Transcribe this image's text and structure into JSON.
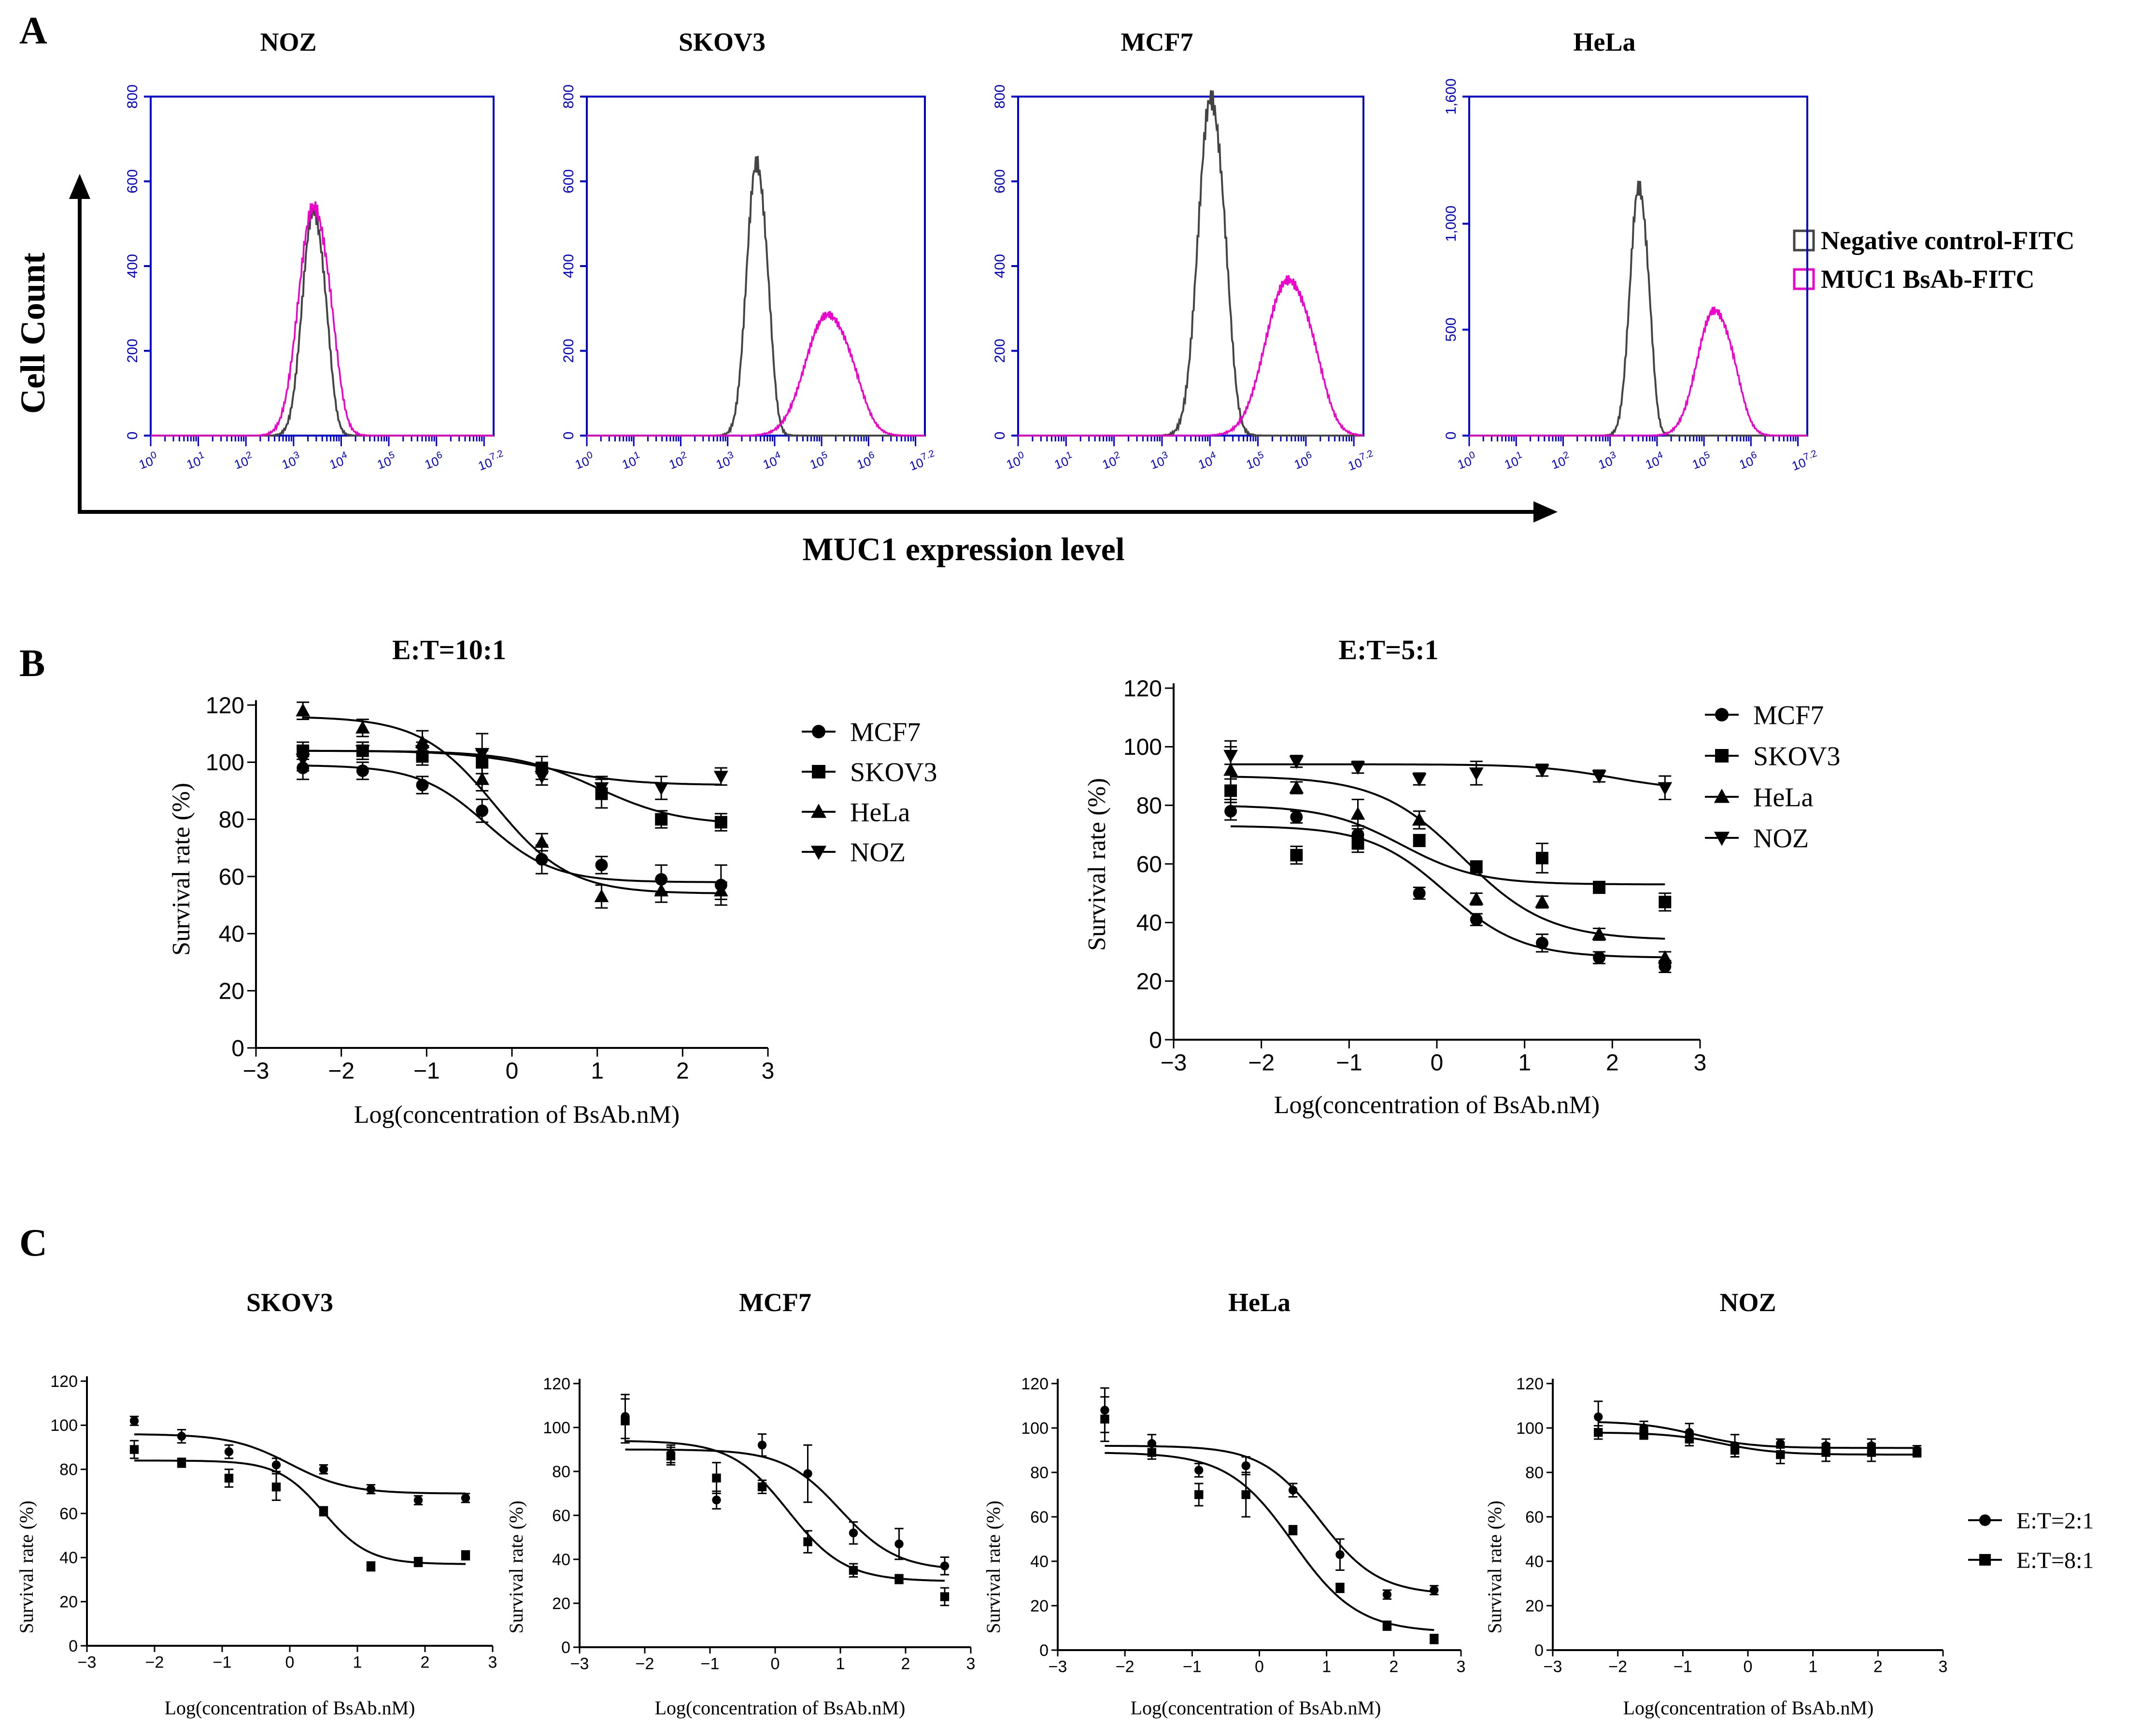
{
  "figure": {
    "panel_labels": [
      "A",
      "B",
      "C"
    ],
    "colors": {
      "black": "#000000",
      "histogram_axis": "#0000cc",
      "control": "#444444",
      "bsab": "#ee00cc"
    }
  },
  "panel_a": {
    "y_label": "Cell Count",
    "x_label": "MUC1 expression level",
    "legend": [
      "Negative control-FITC",
      "MUC1 BsAb-FITC"
    ],
    "x_ticks": [
      "10^0",
      "10^1",
      "10^2",
      "10^3",
      "10^4",
      "10^5",
      "10^6",
      "10^7.2"
    ]
  },
  "panel_b": {
    "y_label": "Survival rate (%)",
    "x_label": "Log(concentration of BsAb.nM)"
  },
  "panel_c": {
    "y_label": "Survival rate (%)",
    "x_label": "Log(concentration of BsAb.nM)",
    "legend": [
      "E:T=2:1",
      "E:T=8:1"
    ]
  },
  "chart_data": [
    {
      "type": "area",
      "panel": "A",
      "title": "NOZ",
      "xscale": "log10",
      "xlim": [
        0,
        7.2
      ],
      "ylim": [
        0,
        800
      ],
      "yticks": [
        "0",
        "200",
        "400",
        "600",
        "800"
      ],
      "series": [
        {
          "name": "Negative control-FITC",
          "peak_log10": 3.4,
          "peak_count": 520,
          "width": 0.22
        },
        {
          "name": "MUC1 BsAb-FITC",
          "peak_log10": 3.4,
          "peak_count": 530,
          "width": 0.3
        }
      ]
    },
    {
      "type": "area",
      "panel": "A",
      "title": "SKOV3",
      "xscale": "log10",
      "xlim": [
        0,
        7.2
      ],
      "ylim": [
        0,
        800
      ],
      "yticks": [
        "0",
        "200",
        "400",
        "600",
        "800"
      ],
      "series": [
        {
          "name": "Negative control-FITC",
          "peak_log10": 3.6,
          "peak_count": 630,
          "width": 0.2
        },
        {
          "name": "MUC1 BsAb-FITC",
          "peak_log10": 5.1,
          "peak_count": 280,
          "width": 0.45
        }
      ]
    },
    {
      "type": "area",
      "panel": "A",
      "title": "MCF7",
      "xscale": "log10",
      "xlim": [
        0,
        7.2
      ],
      "ylim": [
        0,
        800
      ],
      "yticks": [
        "0",
        "200",
        "400",
        "600",
        "800"
      ],
      "series": [
        {
          "name": "Negative control-FITC",
          "peak_log10": 4.0,
          "peak_count": 780,
          "width": 0.25
        },
        {
          "name": "MUC1 BsAb-FITC",
          "peak_log10": 5.6,
          "peak_count": 360,
          "width": 0.45
        }
      ]
    },
    {
      "type": "area",
      "panel": "A",
      "title": "HeLa",
      "xscale": "log10",
      "xlim": [
        0,
        7.2
      ],
      "ylim": [
        0,
        1600
      ],
      "yticks": [
        "0",
        "500",
        "1,000",
        "1,600"
      ],
      "series": [
        {
          "name": "Negative control-FITC",
          "peak_log10": 3.6,
          "peak_count": 1150,
          "width": 0.18
        },
        {
          "name": "MUC1 BsAb-FITC",
          "peak_log10": 5.2,
          "peak_count": 580,
          "width": 0.35
        }
      ]
    },
    {
      "type": "scatter",
      "panel": "B",
      "title": "E:T=10:1",
      "xlim": [
        -3,
        3
      ],
      "ylim": [
        0,
        120
      ],
      "xticks": [
        -3,
        -2,
        -1,
        0,
        1,
        2,
        3
      ],
      "yticks": [
        0,
        20,
        40,
        60,
        80,
        100,
        120
      ],
      "x": [
        -2.45,
        -1.75,
        -1.05,
        -0.35,
        0.35,
        1.05,
        1.75,
        2.45
      ],
      "series": [
        {
          "name": "MCF7",
          "marker": "circle",
          "values": [
            98,
            97,
            92,
            83,
            66,
            64,
            59,
            57
          ],
          "err": [
            4,
            3,
            3,
            4,
            5,
            3,
            5,
            7
          ],
          "top": 99,
          "bottom": 58,
          "ec50": -0.3,
          "hill": 1.1
        },
        {
          "name": "SKOV3",
          "marker": "square",
          "values": [
            104,
            104,
            102,
            100,
            98,
            89,
            80,
            79
          ],
          "err": [
            3,
            3,
            3,
            4,
            4,
            5,
            3,
            3
          ],
          "top": 104,
          "bottom": 78,
          "ec50": 1.0,
          "hill": 0.9
        },
        {
          "name": "HeLa",
          "marker": "triangle-up",
          "values": [
            118,
            112,
            107,
            94,
            72,
            53,
            55,
            55
          ],
          "err": [
            3,
            3,
            4,
            4,
            3,
            4,
            4,
            3
          ],
          "top": 116,
          "bottom": 54,
          "ec50": -0.2,
          "hill": 1.0
        },
        {
          "name": "NOZ",
          "marker": "triangle-down",
          "values": [
            101,
            104,
            104,
            103,
            95,
            91,
            91,
            95
          ],
          "err": [
            4,
            3,
            3,
            7,
            3,
            4,
            4,
            3
          ],
          "top": 104,
          "bottom": 92,
          "ec50": 0.4,
          "hill": 0.9
        }
      ]
    },
    {
      "type": "scatter",
      "panel": "B",
      "title": "E:T=5:1",
      "xlim": [
        -3,
        3
      ],
      "ylim": [
        0,
        120
      ],
      "xticks": [
        -3,
        -2,
        -1,
        0,
        1,
        2,
        3
      ],
      "yticks": [
        0,
        20,
        40,
        60,
        80,
        100,
        120
      ],
      "x": [
        -2.35,
        -1.6,
        -0.9,
        -0.2,
        0.45,
        1.2,
        1.85,
        2.6
      ],
      "series": [
        {
          "name": "MCF7",
          "marker": "circle",
          "values": [
            78,
            76,
            70,
            50,
            41,
            33,
            28,
            25
          ],
          "err": [
            3,
            2,
            3,
            2,
            2,
            3,
            2,
            2
          ],
          "top": 73,
          "bottom": 28,
          "ec50": 0.1,
          "hill": 1.0
        },
        {
          "name": "SKOV3",
          "marker": "square",
          "values": [
            85,
            63,
            67,
            68,
            59,
            62,
            52,
            47
          ],
          "err": [
            4,
            3,
            3,
            2,
            2,
            5,
            2,
            3
          ],
          "top": 80,
          "bottom": 53,
          "ec50": -0.4,
          "hill": 1.0
        },
        {
          "name": "HeLa",
          "marker": "triangle-up",
          "values": [
            92,
            86,
            77,
            75,
            48,
            47,
            36,
            28
          ],
          "err": [
            10,
            2,
            5,
            3,
            2,
            2,
            2,
            2
          ],
          "top": 90,
          "bottom": 34,
          "ec50": 0.3,
          "hill": 0.9
        },
        {
          "name": "NOZ",
          "marker": "triangle-down",
          "values": [
            97,
            95,
            93,
            89,
            91,
            92,
            90,
            86
          ],
          "err": [
            3,
            2,
            2,
            2,
            4,
            2,
            2,
            4
          ],
          "top": 94,
          "bottom": 85,
          "ec50": 2.0,
          "hill": 1.0
        }
      ]
    },
    {
      "type": "scatter",
      "panel": "C",
      "title": "SKOV3",
      "xlim": [
        -3,
        3
      ],
      "ylim": [
        0,
        120
      ],
      "xticks": [
        -3,
        -2,
        -1,
        0,
        1,
        2,
        3
      ],
      "yticks": [
        0,
        20,
        40,
        60,
        80,
        100,
        120
      ],
      "x": [
        -2.3,
        -1.6,
        -0.9,
        -0.2,
        0.5,
        1.2,
        1.9,
        2.6
      ],
      "series": [
        {
          "name": "E:T=2:1",
          "marker": "circle",
          "values": [
            102,
            95,
            88,
            82,
            80,
            71,
            66,
            67
          ],
          "err": [
            2,
            3,
            3,
            3,
            2,
            2,
            2,
            2
          ],
          "top": 96,
          "bottom": 69,
          "ec50": 0.0,
          "hill": 1.0
        },
        {
          "name": "E:T=8:1",
          "marker": "square",
          "values": [
            89,
            83,
            76,
            72,
            61,
            36,
            38,
            41
          ],
          "err": [
            4,
            2,
            4,
            6,
            2,
            2,
            2,
            2
          ],
          "top": 84,
          "bottom": 37,
          "ec50": 0.5,
          "hill": 1.3
        }
      ]
    },
    {
      "type": "scatter",
      "panel": "C",
      "title": "MCF7",
      "xlim": [
        -3,
        3
      ],
      "ylim": [
        0,
        120
      ],
      "xticks": [
        -3,
        -2,
        -1,
        0,
        1,
        2,
        3
      ],
      "yticks": [
        0,
        20,
        40,
        60,
        80,
        100,
        120
      ],
      "x": [
        -2.3,
        -1.6,
        -0.9,
        -0.2,
        0.5,
        1.2,
        1.9,
        2.6
      ],
      "series": [
        {
          "name": "E:T=2:1",
          "marker": "circle",
          "values": [
            105,
            88,
            67,
            92,
            79,
            52,
            47,
            37
          ],
          "err": [
            10,
            4,
            4,
            5,
            13,
            5,
            7,
            4
          ],
          "top": 90,
          "bottom": 35,
          "ec50": 1.0,
          "hill": 1.0
        },
        {
          "name": "E:T=8:1",
          "marker": "square",
          "values": [
            103,
            87,
            77,
            73,
            48,
            35,
            31,
            23
          ],
          "err": [
            10,
            4,
            7,
            3,
            5,
            3,
            2,
            4
          ],
          "top": 94,
          "bottom": 30,
          "ec50": 0.2,
          "hill": 1.0
        }
      ]
    },
    {
      "type": "scatter",
      "panel": "C",
      "title": "HeLa",
      "xlim": [
        -3,
        3
      ],
      "ylim": [
        0,
        120
      ],
      "xticks": [
        -3,
        -2,
        -1,
        0,
        1,
        2,
        3
      ],
      "yticks": [
        0,
        20,
        40,
        60,
        80,
        100,
        120
      ],
      "x": [
        -2.3,
        -1.6,
        -0.9,
        -0.2,
        0.5,
        1.2,
        1.9,
        2.6
      ],
      "series": [
        {
          "name": "E:T=2:1",
          "marker": "circle",
          "values": [
            108,
            93,
            81,
            83,
            72,
            43,
            25,
            27
          ],
          "err": [
            10,
            4,
            3,
            4,
            3,
            7,
            2,
            2
          ],
          "top": 92,
          "bottom": 25,
          "ec50": 0.9,
          "hill": 1.0
        },
        {
          "name": "E:T=8:1",
          "marker": "square",
          "values": [
            104,
            89,
            70,
            70,
            54,
            28,
            11,
            5
          ],
          "err": [
            10,
            3,
            5,
            10,
            2,
            2,
            2,
            2
          ],
          "top": 89,
          "bottom": 8,
          "ec50": 0.5,
          "hill": 0.9
        }
      ]
    },
    {
      "type": "scatter",
      "panel": "C",
      "title": "NOZ",
      "xlim": [
        -3,
        3
      ],
      "ylim": [
        0,
        120
      ],
      "xticks": [
        -3,
        -2,
        -1,
        0,
        1,
        2,
        3
      ],
      "yticks": [
        0,
        20,
        40,
        60,
        80,
        100,
        120
      ],
      "x": [
        -2.3,
        -1.6,
        -0.9,
        -0.2,
        0.5,
        1.2,
        1.9,
        2.6
      ],
      "series": [
        {
          "name": "E:T=2:1",
          "marker": "circle",
          "values": [
            105,
            100,
            98,
            92,
            93,
            92,
            92,
            90
          ],
          "err": [
            7,
            3,
            4,
            5,
            2,
            3,
            3,
            2
          ],
          "top": 103,
          "bottom": 91,
          "ec50": -0.8,
          "hill": 1.0
        },
        {
          "name": "E:T=8:1",
          "marker": "square",
          "values": [
            98,
            97,
            95,
            90,
            88,
            89,
            89,
            89
          ],
          "err": [
            3,
            2,
            3,
            3,
            4,
            4,
            4,
            2
          ],
          "top": 98,
          "bottom": 88,
          "ec50": -0.4,
          "hill": 1.0
        }
      ]
    }
  ]
}
